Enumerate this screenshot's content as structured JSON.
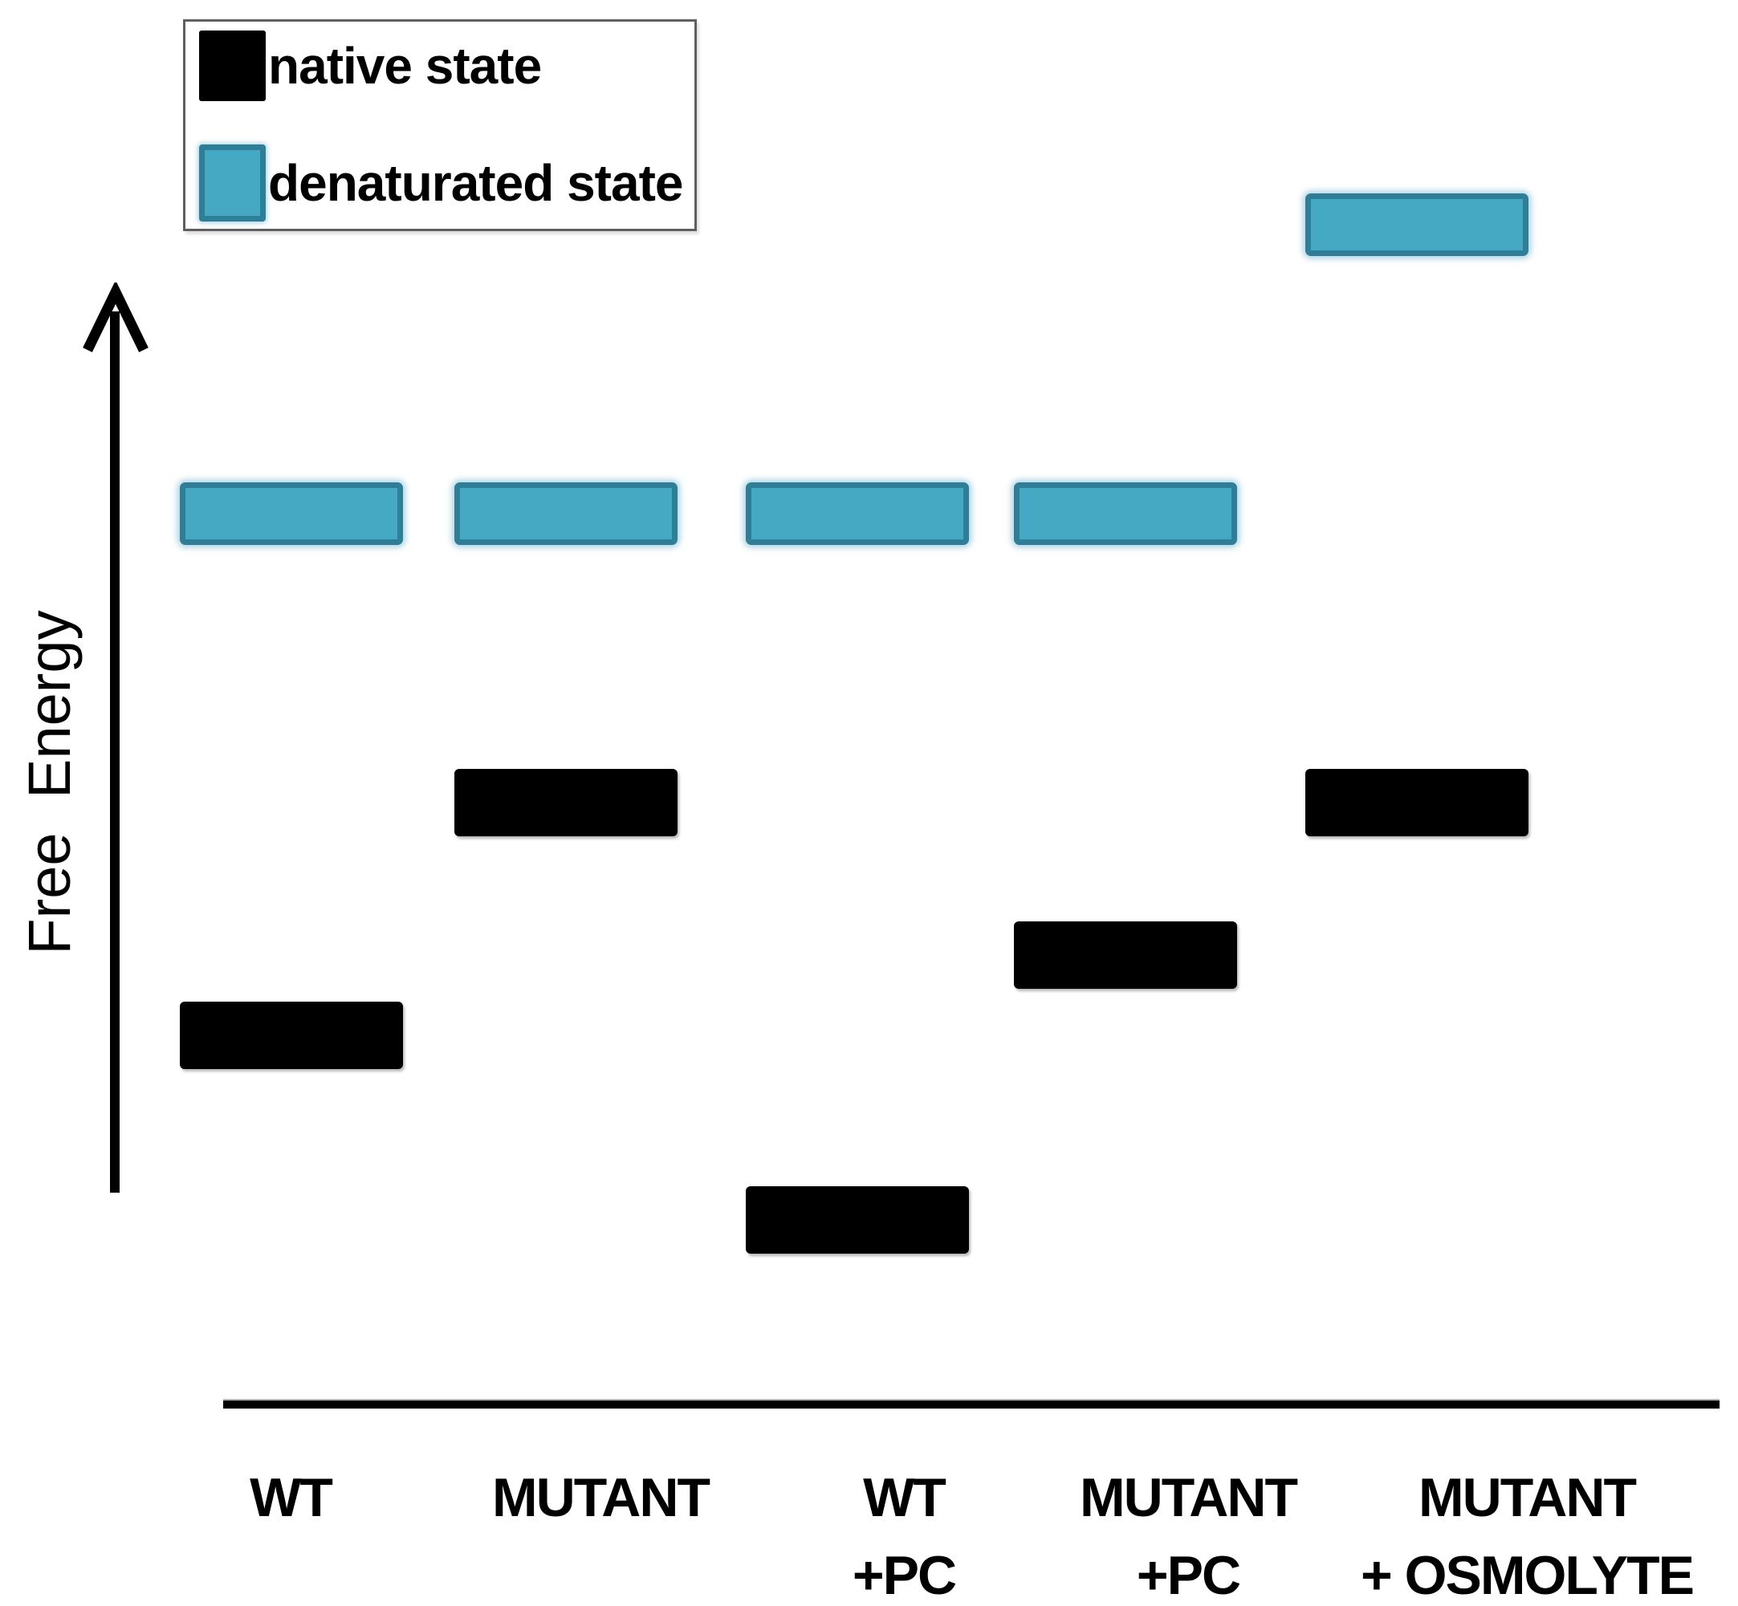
{
  "figure": {
    "description": "Free energy level diagram comparing native and denaturated protein states under different conditions"
  },
  "legend": {
    "items": [
      {
        "key": "native",
        "label": "native state"
      },
      {
        "key": "denatured",
        "label": "denaturated state"
      }
    ]
  },
  "colors": {
    "background": "#FFFFFF",
    "native_fill": "#000000",
    "denatured_fill": "#46A9C3",
    "denatured_border": "#2E7E98",
    "axis": "#000000",
    "legend_border": "#5F5F5F",
    "text": "#000000"
  },
  "chart_data": {
    "type": "bar",
    "title": "",
    "xlabel": "",
    "ylabel": "Free Energy",
    "value_units": "arbitrary free energy units (no numeric scale shown)",
    "ylim": [
      0,
      16
    ],
    "grid": false,
    "legend_position": "top-left",
    "categories": [
      "WT",
      "MUTANT",
      "WT\n+PC",
      "MUTANT\n+PC",
      "MUTANT\n+ OSMOLYTE"
    ],
    "series": [
      {
        "name": "native state",
        "values": [
          4.6,
          7.5,
          2.3,
          5.6,
          7.5
        ]
      },
      {
        "name": "denaturated state",
        "values": [
          11.1,
          11.1,
          11.1,
          11.1,
          14.7
        ]
      }
    ]
  }
}
